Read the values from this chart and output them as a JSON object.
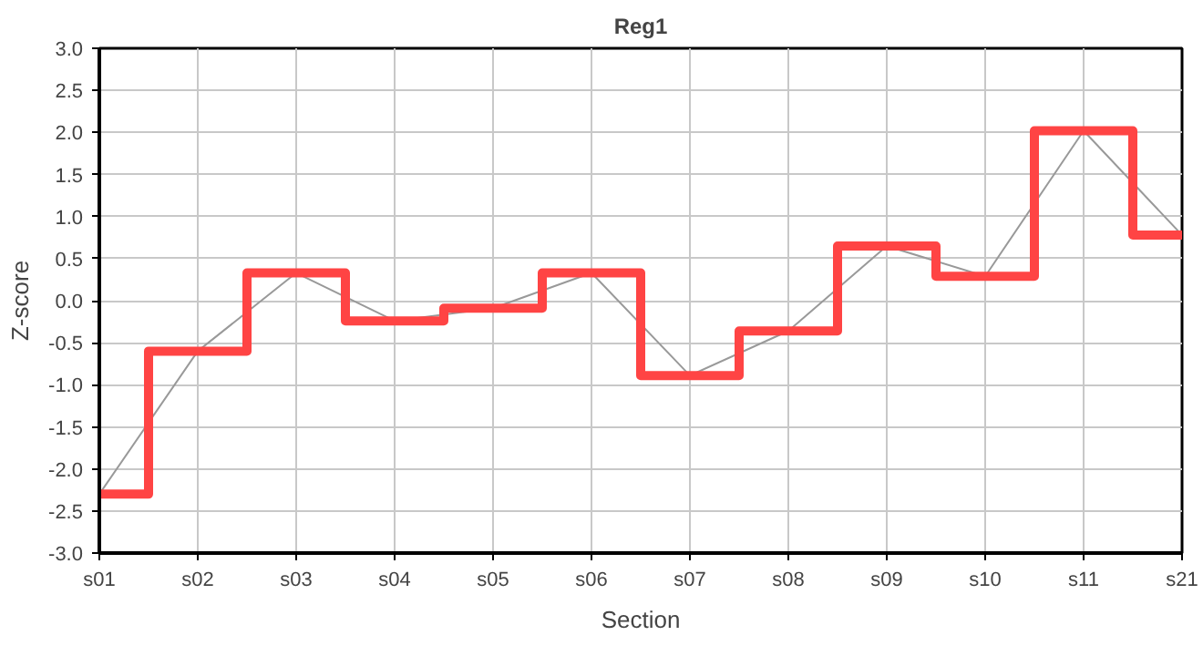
{
  "chart_data": {
    "type": "line",
    "title": "Reg1",
    "xlabel": "Section",
    "ylabel": "Z-score",
    "categories": [
      "s01",
      "s02",
      "s03",
      "s04",
      "s05",
      "s06",
      "s07",
      "s08",
      "s09",
      "s10",
      "s11",
      "s21"
    ],
    "series": [
      {
        "color": "#999999",
        "values": [
          -2.3,
          -0.6,
          0.33,
          -0.24,
          -0.09,
          0.33,
          -0.89,
          -0.36,
          0.65,
          0.29,
          2.02,
          0.78
        ]
      },
      {
        "type": "step",
        "color": "#ff4444",
        "values": [
          -2.3,
          -0.6,
          0.33,
          -0.24,
          -0.09,
          0.33,
          -0.89,
          -0.36,
          0.65,
          0.29,
          2.02,
          0.78
        ]
      }
    ],
    "ylim": [
      -3.0,
      3.0
    ],
    "yticks": [
      {
        "value": -3,
        "label": "-3.0"
      },
      {
        "value": -2.5,
        "label": "-2.5"
      },
      {
        "value": -2,
        "label": "-2.0"
      },
      {
        "value": -1.5,
        "label": "-1.5"
      },
      {
        "value": -1,
        "label": "-1.0"
      },
      {
        "value": -0.5,
        "label": "-0.5"
      },
      {
        "value": 0,
        "label": "0.0"
      },
      {
        "value": 0.5,
        "label": "0.5"
      },
      {
        "value": 1,
        "label": "1.0"
      },
      {
        "value": 1.5,
        "label": "1.5"
      },
      {
        "value": 2,
        "label": "2.0"
      },
      {
        "value": 2.5,
        "label": "2.5"
      },
      {
        "value": 3,
        "label": "3.0"
      }
    ],
    "grid": true,
    "marker": "none",
    "line_style": "solid"
  }
}
